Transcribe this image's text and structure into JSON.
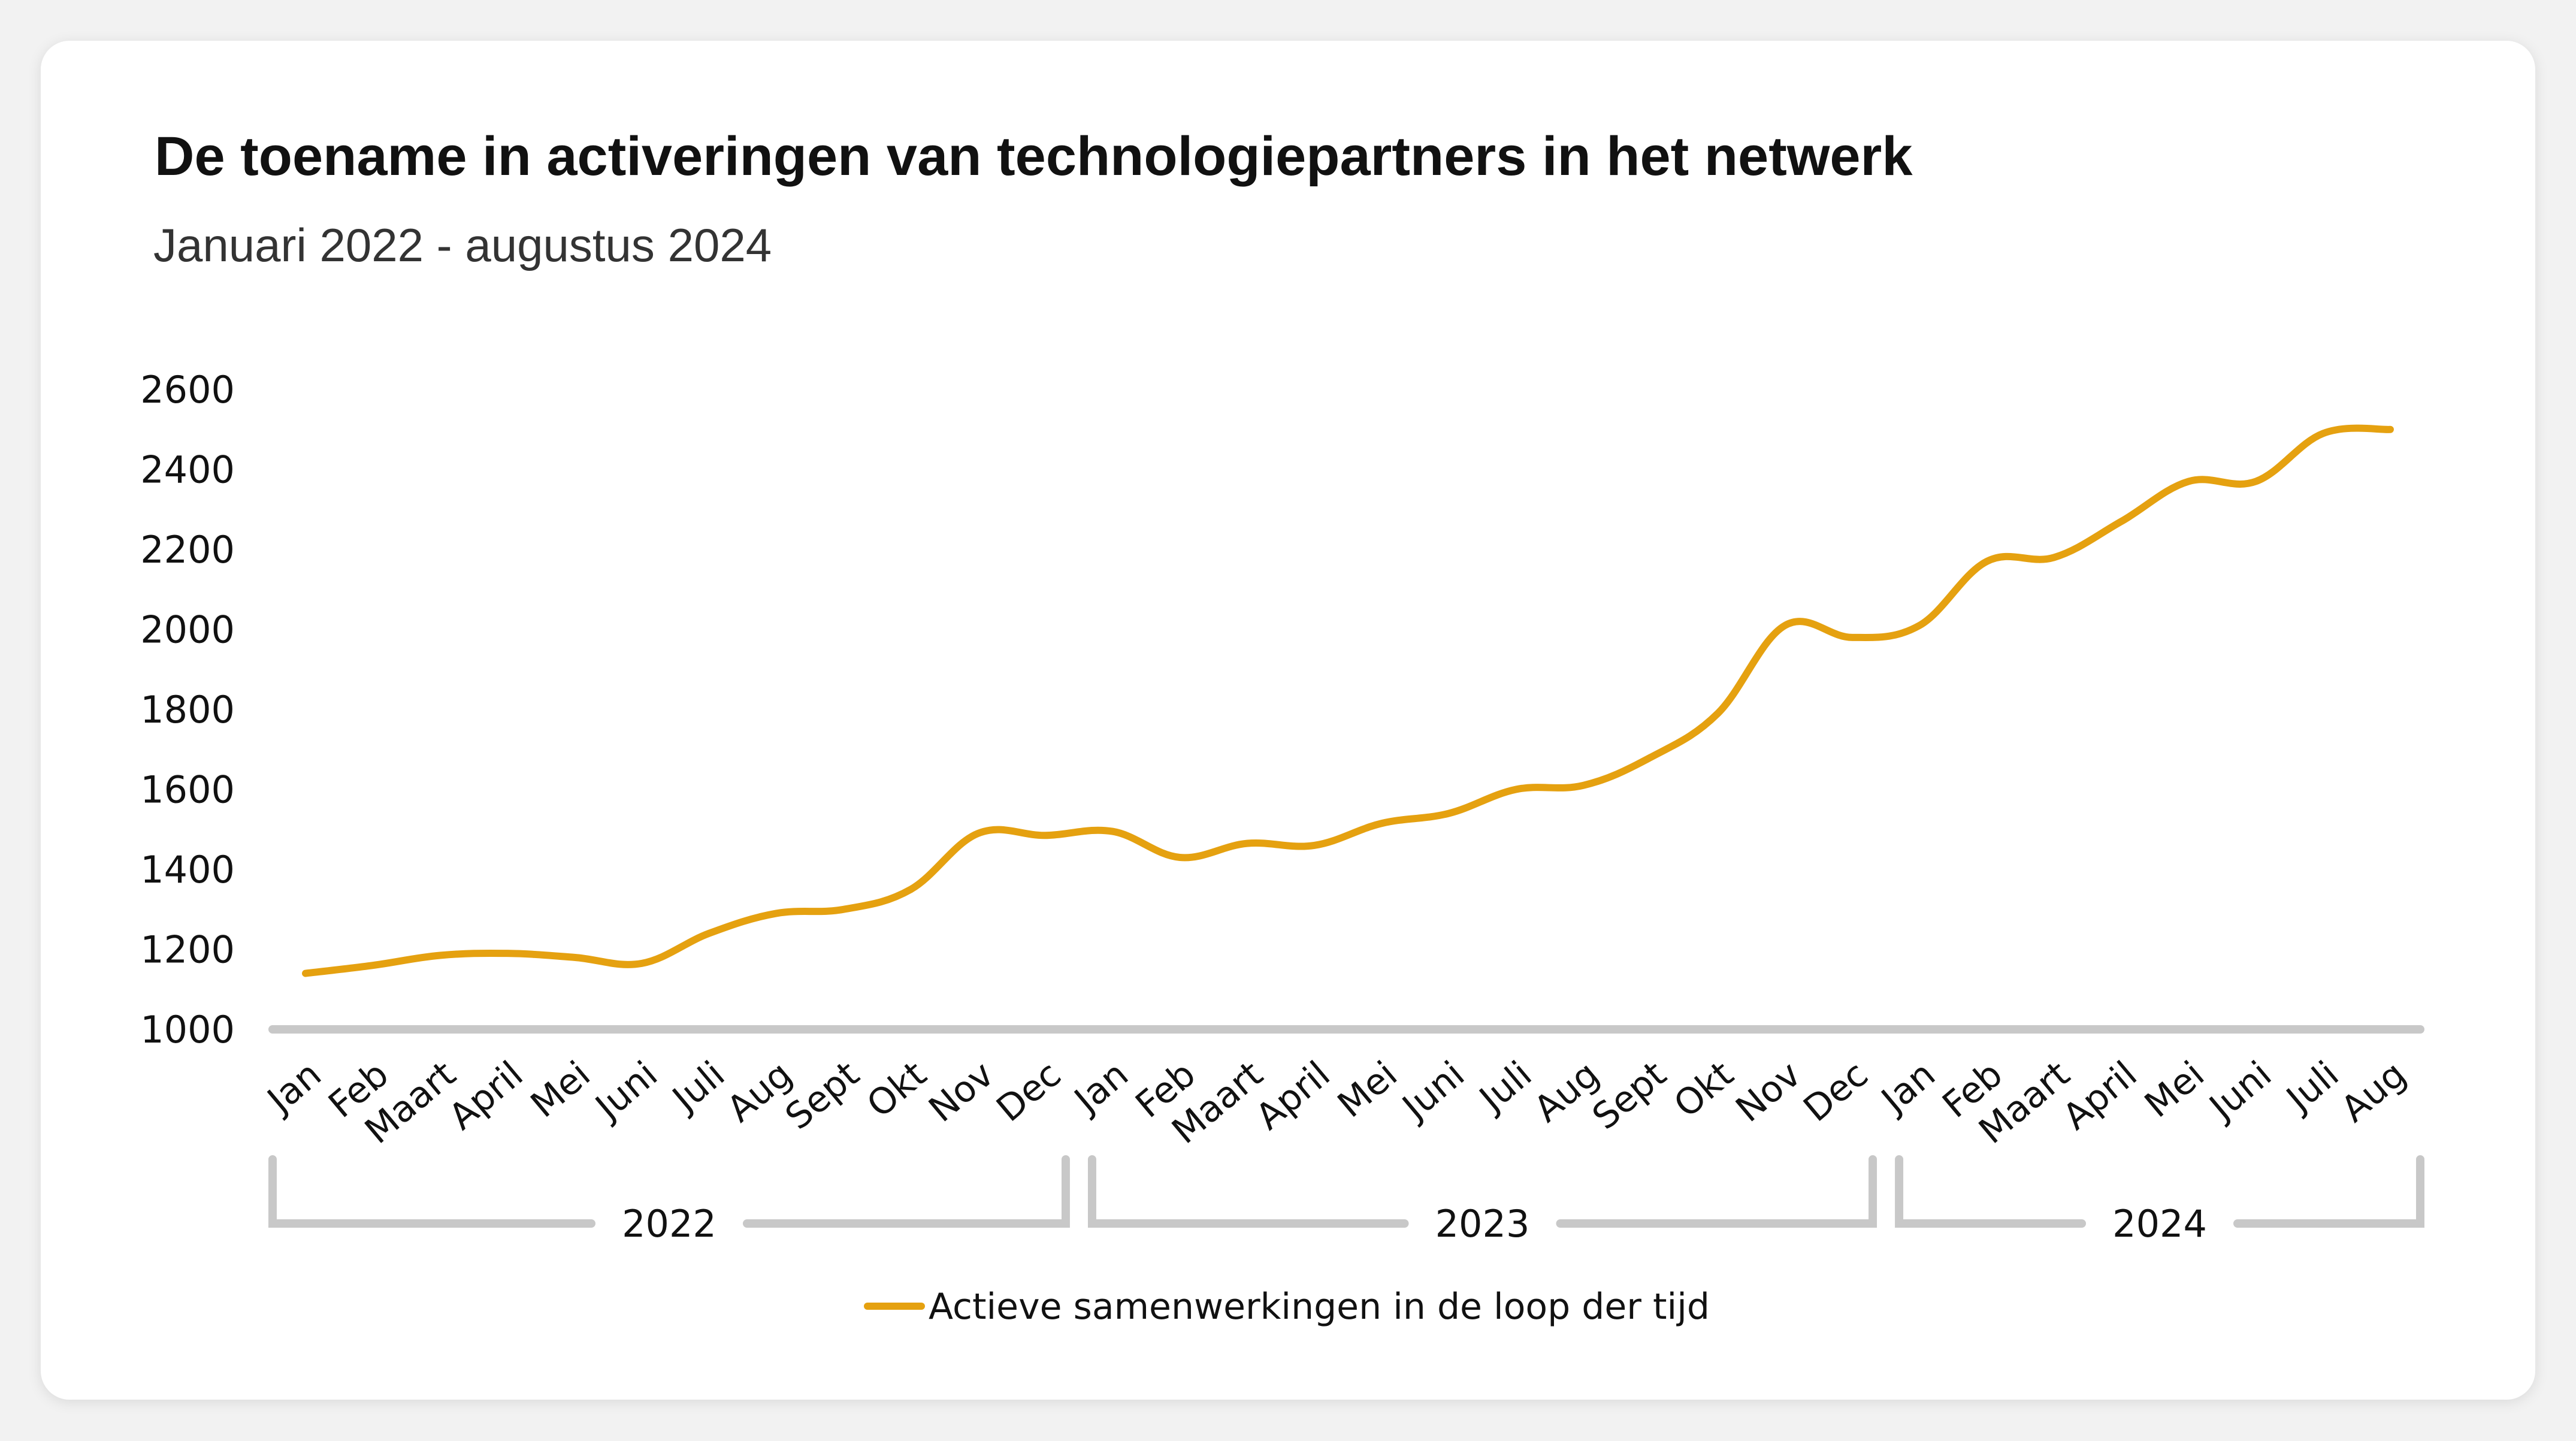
{
  "chart_data": {
    "type": "line",
    "title": "De toename in activeringen van technologiepartners in het netwerk",
    "subtitle": "Januari 2022 - augustus 2024",
    "xlabel": "",
    "ylabel": "",
    "ylim": [
      1000,
      2600
    ],
    "yticks": [
      "2600",
      "2400",
      "2200",
      "2000",
      "1800",
      "1600",
      "1400",
      "1200",
      "1000"
    ],
    "grid": false,
    "legend_position": "bottom",
    "categories": [
      "Jan",
      "Feb",
      "Maart",
      "April",
      "Mei",
      "Juni",
      "Juli",
      "Aug",
      "Sept",
      "Okt",
      "Nov",
      "Dec",
      "Jan",
      "Feb",
      "Maart",
      "April",
      "Mei",
      "Juni",
      "Juli",
      "Aug",
      "Sept",
      "Okt",
      "Nov",
      "Dec",
      "Jan",
      "Feb",
      "Maart",
      "April",
      "Mei",
      "Juni",
      "Juli",
      "Aug"
    ],
    "year_groups": [
      {
        "label": "2022",
        "start": 0,
        "end": 11
      },
      {
        "label": "2023",
        "start": 12,
        "end": 23
      },
      {
        "label": "2024",
        "start": 24,
        "end": 31
      }
    ],
    "series": [
      {
        "name": "Actieve samenwerkingen in de loop der tijd",
        "color": "#E5A110",
        "values": [
          1140,
          1160,
          1185,
          1190,
          1180,
          1165,
          1240,
          1290,
          1300,
          1350,
          1490,
          1485,
          1495,
          1430,
          1465,
          1460,
          1515,
          1540,
          1600,
          1610,
          1680,
          1790,
          2010,
          1980,
          2010,
          2170,
          2180,
          2270,
          2370,
          2370,
          2490,
          2500
        ]
      }
    ]
  },
  "colors": {
    "line": "#E5A110",
    "axis": "#C8C8C8",
    "background": "#ffffff"
  }
}
